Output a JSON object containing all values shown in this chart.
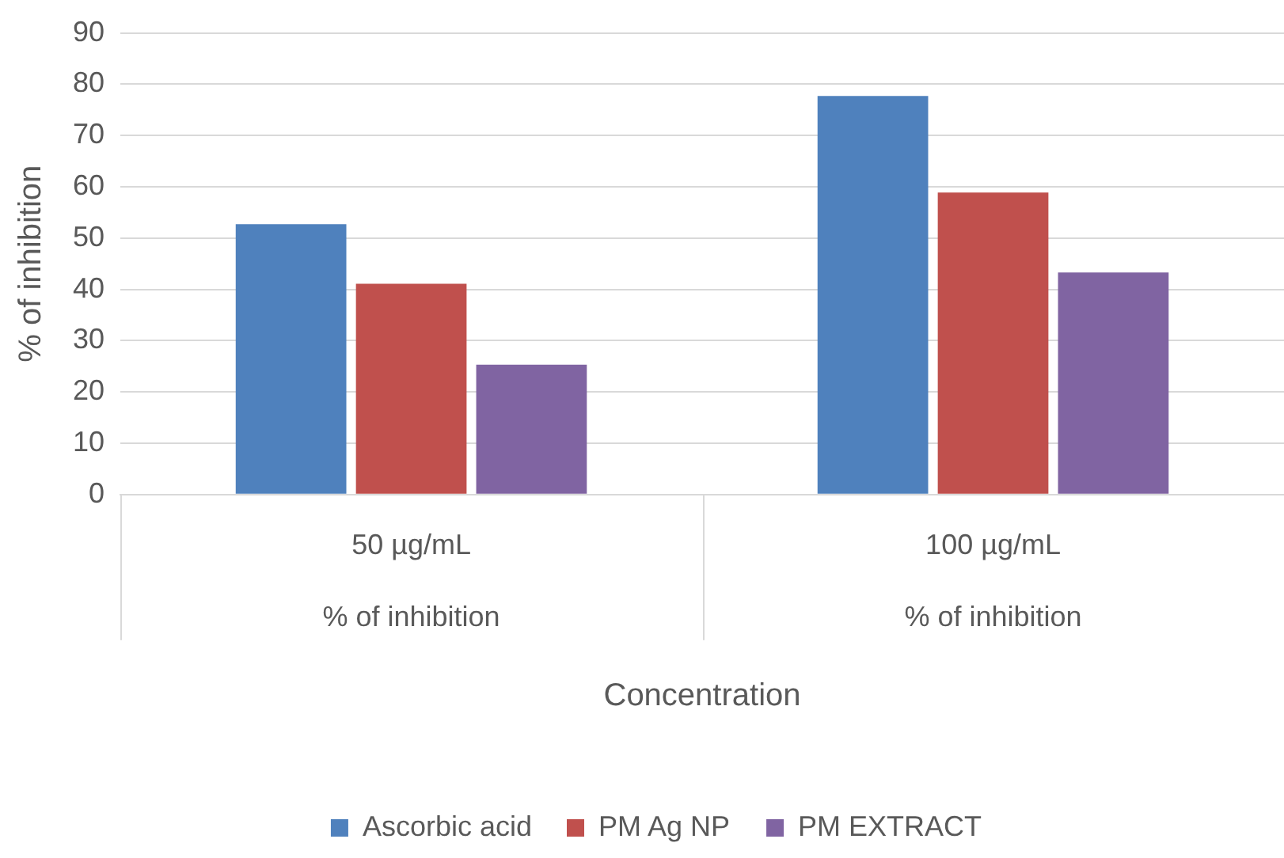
{
  "chart_data": {
    "type": "bar",
    "xlabel": "Concentration",
    "ylabel": "% of inhibition",
    "categories": [
      "50 µg/mL",
      "100 µg/mL"
    ],
    "series": [
      {
        "name": "Ascorbic acid",
        "color": "#4f81bd",
        "values": [
          52.7,
          77.7
        ]
      },
      {
        "name": "PM Ag NP",
        "color": "#c0504d",
        "values": [
          41.1,
          58.9
        ]
      },
      {
        "name": "PM EXTRACT",
        "color": "#8064a2",
        "values": [
          25.3,
          43.3
        ]
      }
    ],
    "annotations": [
      "% of inhibition",
      "% of inhibition"
    ],
    "ylim": [
      0,
      90
    ],
    "yticks": [
      0,
      10,
      20,
      30,
      40,
      50,
      60,
      70,
      80,
      90
    ],
    "grid": "y",
    "legend": "bottom"
  }
}
